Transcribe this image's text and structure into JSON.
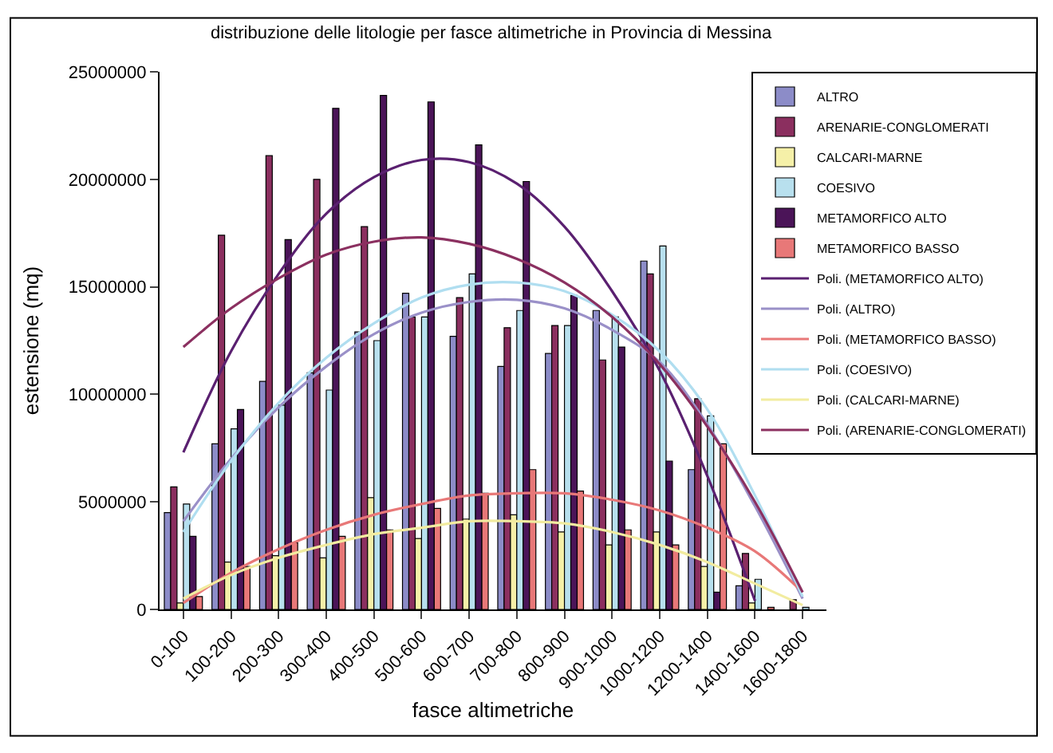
{
  "chart_data": {
    "type": "bar",
    "title": "distribuzione delle litologie per fasce altimetriche in Provincia di Messina",
    "xlabel": "fasce altimetriche",
    "ylabel": "estensione (mq)",
    "categories": [
      "0-100",
      "100-200",
      "200-300",
      "300-400",
      "400-500",
      "500-600",
      "600-700",
      "700-800",
      "800-900",
      "900-1000",
      "1000-1200",
      "1200-1400",
      "1400-1600",
      "1600-1800"
    ],
    "ylim": [
      0,
      25000000
    ],
    "yticks": [
      0,
      5000000,
      10000000,
      15000000,
      20000000,
      25000000
    ],
    "legend": "top right",
    "series": [
      {
        "name": "ALTRO",
        "color": "#8c8cc8",
        "values": [
          4500000,
          7700000,
          10600000,
          11000000,
          12900000,
          14700000,
          12700000,
          11300000,
          11900000,
          13900000,
          16200000,
          6500000,
          1100000,
          null
        ]
      },
      {
        "name": "ARENARIE-CONGLOMERATI",
        "color": "#8b2f5f",
        "values": [
          5700000,
          17400000,
          21100000,
          20000000,
          17800000,
          13600000,
          14500000,
          13100000,
          13200000,
          11600000,
          15600000,
          9800000,
          2600000,
          450000
        ]
      },
      {
        "name": "CALCARI-MARNE",
        "color": "#f5f0a8",
        "values": [
          300000,
          2200000,
          2500000,
          2400000,
          5200000,
          3300000,
          4200000,
          4400000,
          3600000,
          3000000,
          3600000,
          2000000,
          300000,
          null
        ]
      },
      {
        "name": "COESIVO",
        "color": "#b8e0ee",
        "values": [
          4900000,
          8400000,
          9500000,
          10200000,
          12500000,
          13600000,
          15600000,
          13900000,
          13200000,
          13600000,
          16900000,
          9000000,
          1400000,
          100000
        ]
      },
      {
        "name": "METAMORFICO ALTO",
        "color": "#4b1458",
        "values": [
          3400000,
          9300000,
          17200000,
          23300000,
          23900000,
          23600000,
          21600000,
          19900000,
          14600000,
          12200000,
          6900000,
          800000,
          null,
          null
        ]
      },
      {
        "name": "METAMORFICO BASSO",
        "color": "#e87878",
        "values": [
          600000,
          2000000,
          3100000,
          3400000,
          3700000,
          4700000,
          5400000,
          6500000,
          5500000,
          3700000,
          3000000,
          7700000,
          100000,
          null
        ]
      },
      {
        "name": "Poli. (METAMORFICO ALTO)",
        "type": "line",
        "color": "#5a2070",
        "values": [
          7300000,
          12000000,
          15600000,
          18400000,
          20100000,
          20900000,
          20800000,
          19800000,
          17800000,
          14800000,
          11100000,
          6200000,
          400000,
          null
        ]
      },
      {
        "name": "Poli. (ALTRO)",
        "type": "line",
        "color": "#9a90c8",
        "values": [
          4100000,
          7000000,
          9400000,
          11300000,
          12800000,
          13800000,
          14300000,
          14400000,
          14000000,
          13000000,
          11500000,
          8600000,
          4800000,
          500000
        ]
      },
      {
        "name": "Poli. (METAMORFICO BASSO)",
        "type": "line",
        "color": "#e87878",
        "values": [
          300000,
          1700000,
          2800000,
          3700000,
          4400000,
          4900000,
          5300000,
          5400000,
          5400000,
          5100000,
          4600000,
          3800000,
          2700000,
          800000
        ]
      },
      {
        "name": "Poli. (COESIVO)",
        "type": "line",
        "color": "#b0def0",
        "values": [
          3600000,
          6900000,
          9600000,
          11700000,
          13300000,
          14500000,
          15100000,
          15200000,
          14800000,
          13700000,
          12000000,
          9300000,
          5300000,
          600000
        ]
      },
      {
        "name": "Poli. (CALCARI-MARNE)",
        "type": "line",
        "color": "#f2eca0",
        "values": [
          500000,
          1600000,
          2400000,
          3000000,
          3500000,
          3800000,
          4100000,
          4100000,
          4000000,
          3600000,
          3000000,
          2200000,
          1200000,
          200000
        ]
      },
      {
        "name": "Poli. (ARENARIE-CONGLOMERATI)",
        "type": "line",
        "color": "#8b3060",
        "values": [
          12200000,
          14000000,
          15400000,
          16500000,
          17100000,
          17300000,
          17000000,
          16300000,
          15200000,
          13600000,
          11400000,
          8500000,
          5000000,
          800000
        ]
      }
    ]
  }
}
